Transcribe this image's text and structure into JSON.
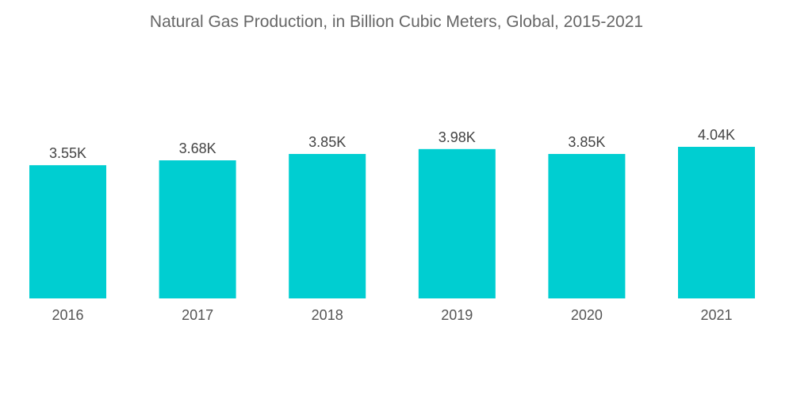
{
  "chart_data": {
    "type": "bar",
    "title": "Natural Gas Production, in Billion Cubic Meters, Global, 2015-2021",
    "categories": [
      "2016",
      "2017",
      "2018",
      "2019",
      "2020",
      "2021"
    ],
    "values": [
      3.55,
      3.68,
      3.85,
      3.98,
      3.85,
      4.04
    ],
    "data_labels": [
      "3.55K",
      "3.68K",
      "3.85K",
      "3.98K",
      "3.85K",
      "4.04K"
    ],
    "xlabel": "",
    "ylabel": "",
    "ylim": [
      0,
      4.04
    ],
    "grid": false,
    "legend": "none",
    "bar_color": "#00CED1"
  }
}
